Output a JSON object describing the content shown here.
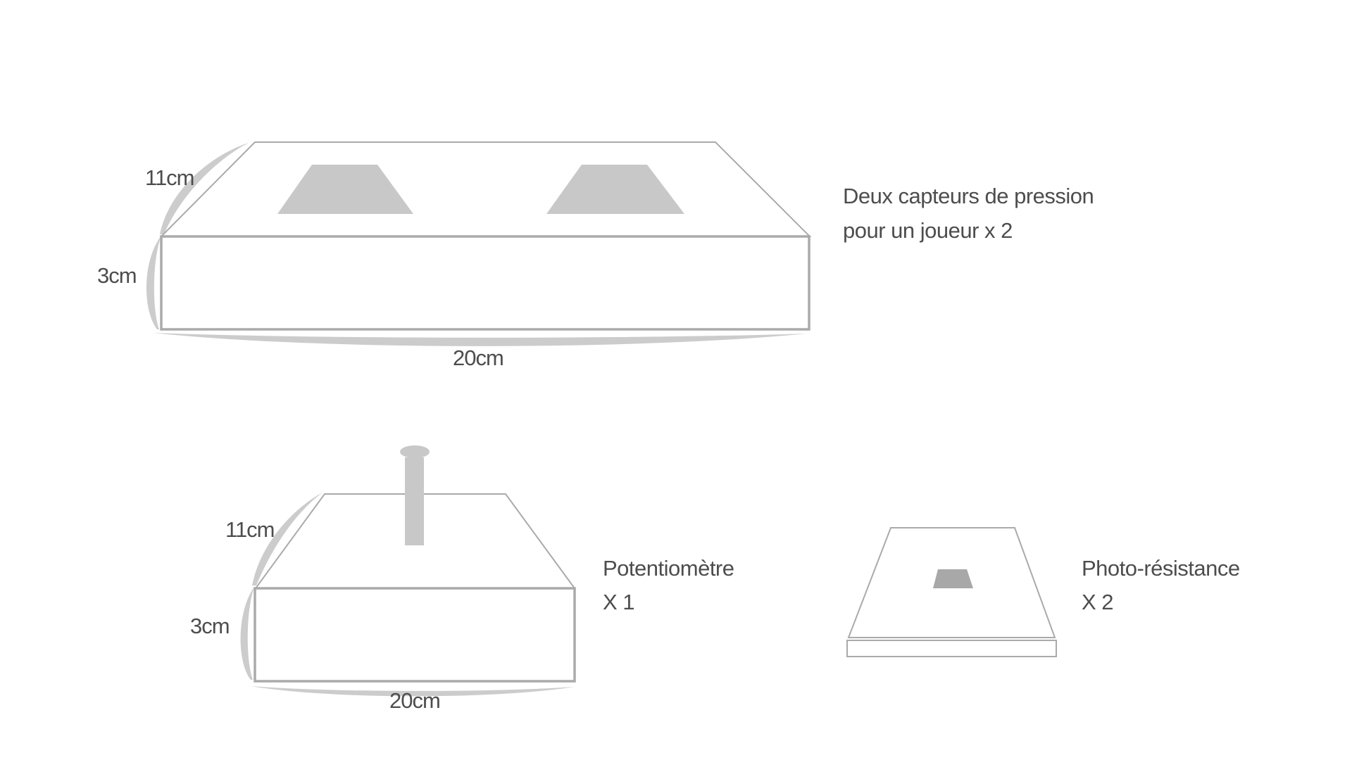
{
  "boxes": {
    "pressure": {
      "depth_label": "11cm",
      "height_label": "3cm",
      "width_label": "20cm",
      "description_line1": "Deux capteurs de pression",
      "description_line2": "pour un joueur x 2"
    },
    "potentiometer": {
      "depth_label": "11cm",
      "height_label": "3cm",
      "width_label": "20cm",
      "description_line1": "Potentiomètre",
      "description_line2": "X 1"
    },
    "photoresistor": {
      "description_line1": "Photo-résistance",
      "description_line2": "X 2"
    }
  },
  "colors": {
    "outline": "#aaaaaa",
    "dimension_arc": "#cccccc",
    "sensor": "#c8c8c8",
    "text": "#4d4d4d"
  }
}
